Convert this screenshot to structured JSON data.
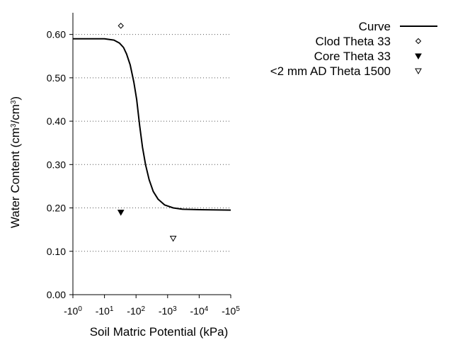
{
  "chart_data": {
    "type": "line",
    "xscale": "negative-log10",
    "xlabel": "Soil Matric Potential (kPa)",
    "ylabel": {
      "prefix": "Water Content (cm",
      "sup1": "3",
      "mid": "/cm",
      "sup2": "3",
      "suffix": ")"
    },
    "ylim": [
      0.0,
      0.65
    ],
    "xlim": [
      -1,
      -100000
    ],
    "y_ticks": [
      {
        "value": 0.0,
        "label": "0.00"
      },
      {
        "value": 0.1,
        "label": "0.10"
      },
      {
        "value": 0.2,
        "label": "0.20"
      },
      {
        "value": 0.3,
        "label": "0.30"
      },
      {
        "value": 0.4,
        "label": "0.40"
      },
      {
        "value": 0.5,
        "label": "0.50"
      },
      {
        "value": 0.6,
        "label": "0.60"
      }
    ],
    "x_ticks": [
      {
        "exp": 0,
        "base": "-10",
        "sup": "0"
      },
      {
        "exp": 1,
        "base": "-10",
        "sup": "1"
      },
      {
        "exp": 2,
        "base": "-10",
        "sup": "2"
      },
      {
        "exp": 3,
        "base": "-10",
        "sup": "3"
      },
      {
        "exp": 4,
        "base": "-10",
        "sup": "4"
      },
      {
        "exp": 5,
        "base": "-10",
        "sup": "5"
      }
    ],
    "grid": "horizontal dotted",
    "legend_position": "top-right",
    "series": [
      {
        "name": "Curve",
        "kind": "line",
        "color": "#000000",
        "points": [
          {
            "x": -1,
            "y": 0.59
          },
          {
            "x": -10,
            "y": 0.59
          },
          {
            "x": -20,
            "y": 0.587
          },
          {
            "x": -30,
            "y": 0.58
          },
          {
            "x": -40,
            "y": 0.57
          },
          {
            "x": -50,
            "y": 0.555
          },
          {
            "x": -65,
            "y": 0.53
          },
          {
            "x": -85,
            "y": 0.49
          },
          {
            "x": -105,
            "y": 0.45
          },
          {
            "x": -130,
            "y": 0.39
          },
          {
            "x": -160,
            "y": 0.34
          },
          {
            "x": -200,
            "y": 0.3
          },
          {
            "x": -260,
            "y": 0.265
          },
          {
            "x": -350,
            "y": 0.238
          },
          {
            "x": -500,
            "y": 0.22
          },
          {
            "x": -800,
            "y": 0.207
          },
          {
            "x": -1500,
            "y": 0.2
          },
          {
            "x": -3000,
            "y": 0.197
          },
          {
            "x": -10000,
            "y": 0.196
          },
          {
            "x": -100000,
            "y": 0.195
          }
        ]
      },
      {
        "name": "Clod Theta 33",
        "kind": "marker",
        "marker": "diamond-open",
        "points": [
          {
            "x": -33,
            "y": 0.62
          }
        ]
      },
      {
        "name": "Core Theta 33",
        "kind": "marker",
        "marker": "triangle-down-filled",
        "points": [
          {
            "x": -33,
            "y": 0.19
          }
        ]
      },
      {
        "name": "<2 mm AD Theta 1500",
        "kind": "marker",
        "marker": "triangle-down-open",
        "points": [
          {
            "x": -1500,
            "y": 0.13
          }
        ]
      }
    ]
  }
}
